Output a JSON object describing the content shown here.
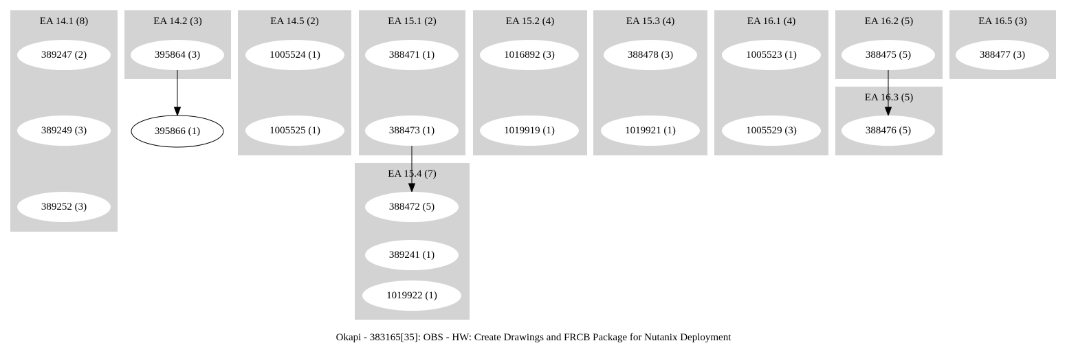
{
  "title": "Okapi - 383165[35]: OBS - HW: Create Drawings and FRCB Package for Nutanix Deployment",
  "clusters": [
    {
      "id": "ea141",
      "label": "EA 14.1 (8)"
    },
    {
      "id": "ea142",
      "label": "EA 14.2 (3)"
    },
    {
      "id": "ea145",
      "label": "EA 14.5 (2)"
    },
    {
      "id": "ea151",
      "label": "EA 15.1 (2)"
    },
    {
      "id": "ea152",
      "label": "EA 15.2 (4)"
    },
    {
      "id": "ea153",
      "label": "EA 15.3 (4)"
    },
    {
      "id": "ea161",
      "label": "EA 16.1 (4)"
    },
    {
      "id": "ea162",
      "label": "EA 16.2 (5)"
    },
    {
      "id": "ea165",
      "label": "EA 16.5 (3)"
    },
    {
      "id": "ea163",
      "label": "EA 16.3 (5)"
    },
    {
      "id": "ea154",
      "label": "EA 15.4 (7)"
    }
  ],
  "nodes": [
    {
      "id": "n389247",
      "label": "389247 (2)",
      "cluster": "ea141"
    },
    {
      "id": "n389249",
      "label": "389249 (3)",
      "cluster": "ea141"
    },
    {
      "id": "n389252",
      "label": "389252 (3)",
      "cluster": "ea141"
    },
    {
      "id": "n395864",
      "label": "395864 (3)",
      "cluster": "ea142"
    },
    {
      "id": "n395866",
      "label": "395866 (1)",
      "cluster": ""
    },
    {
      "id": "n1005524",
      "label": "1005524 (1)",
      "cluster": "ea145"
    },
    {
      "id": "n1005525",
      "label": "1005525 (1)",
      "cluster": "ea145"
    },
    {
      "id": "n388471",
      "label": "388471 (1)",
      "cluster": "ea151"
    },
    {
      "id": "n388473",
      "label": "388473 (1)",
      "cluster": "ea151"
    },
    {
      "id": "n1016892",
      "label": "1016892 (3)",
      "cluster": "ea152"
    },
    {
      "id": "n1019919",
      "label": "1019919 (1)",
      "cluster": "ea152"
    },
    {
      "id": "n388478",
      "label": "388478 (3)",
      "cluster": "ea153"
    },
    {
      "id": "n1019921",
      "label": "1019921 (1)",
      "cluster": "ea153"
    },
    {
      "id": "n1005523",
      "label": "1005523 (1)",
      "cluster": "ea161"
    },
    {
      "id": "n1005529",
      "label": "1005529 (3)",
      "cluster": "ea161"
    },
    {
      "id": "n388475",
      "label": "388475 (5)",
      "cluster": "ea162"
    },
    {
      "id": "n388477",
      "label": "388477 (3)",
      "cluster": "ea165"
    },
    {
      "id": "n388476",
      "label": "388476 (5)",
      "cluster": "ea163"
    },
    {
      "id": "n388472",
      "label": "388472 (5)",
      "cluster": "ea154"
    },
    {
      "id": "n389241",
      "label": "389241 (1)",
      "cluster": "ea154"
    },
    {
      "id": "n1019922",
      "label": "1019922 (1)",
      "cluster": "ea154"
    }
  ],
  "edges": [
    {
      "from": "n395864",
      "to": "n395866"
    },
    {
      "from": "n388473",
      "to": "n388472"
    },
    {
      "from": "n388475",
      "to": "n388476"
    }
  ]
}
